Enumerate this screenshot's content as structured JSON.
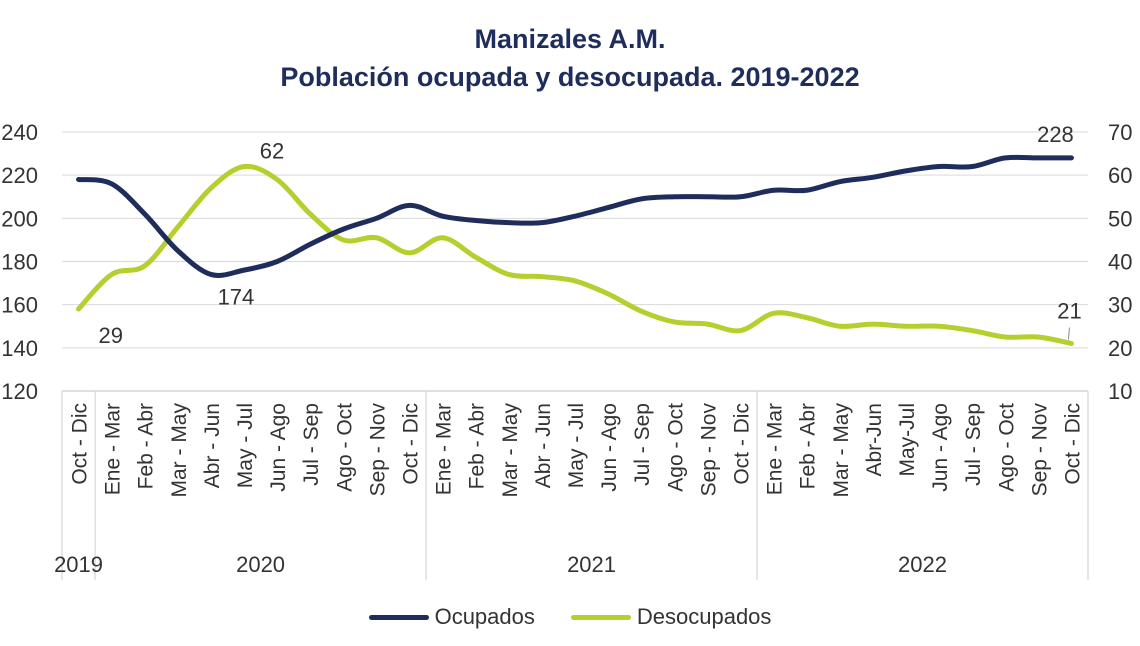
{
  "chart_data": {
    "type": "line",
    "title": "Manizales A.M.",
    "subtitle": "Población ocupada y desocupada. 2019-2022",
    "categories": [
      "Oct - Dic",
      "Ene - Mar",
      "Feb - Abr",
      "Mar - May",
      "Abr - Jun",
      "May - Jul",
      "Jun - Ago",
      "Jul - Sep",
      "Ago - Oct",
      "Sep - Nov",
      "Oct - Dic",
      "Ene - Mar",
      "Feb - Abr",
      "Mar - May",
      "Abr - Jun",
      "May - Jul",
      "Jun - Ago",
      "Jul - Sep",
      "Ago - Oct",
      "Sep - Nov",
      "Oct - Dic",
      "Ene - Mar",
      "Feb - Abr",
      "Mar - May",
      "Abr-Jun",
      "May-Jul",
      "Jun - Ago",
      "Jul - Sep",
      "Ago - Oct",
      "Sep - Nov",
      "Oct - Dic"
    ],
    "year_groups": [
      {
        "label": "2019",
        "start": 0,
        "end": 0
      },
      {
        "label": "2020",
        "start": 1,
        "end": 10
      },
      {
        "label": "2021",
        "start": 11,
        "end": 20
      },
      {
        "label": "2022",
        "start": 21,
        "end": 30
      }
    ],
    "y_left": {
      "ticks": [
        120,
        140,
        160,
        180,
        200,
        220,
        240
      ],
      "tick_labels": [
        "120",
        "140",
        "160",
        "180",
        "200",
        "220",
        "240"
      ],
      "range": [
        120,
        240
      ]
    },
    "y_right": {
      "ticks": [
        10,
        20,
        30,
        40,
        50,
        60,
        70
      ],
      "tick_labels": [
        "10",
        "20",
        "30",
        "40",
        "50",
        "60",
        "70"
      ],
      "range": [
        10,
        70
      ]
    },
    "grid": true,
    "series": [
      {
        "name": "Ocupados",
        "axis": "left",
        "color": "#1f2d5c",
        "values": [
          218,
          216,
          202,
          185,
          174,
          176,
          180,
          188,
          195,
          200,
          206,
          201,
          199,
          198,
          198,
          201,
          205,
          209,
          210,
          210,
          210,
          213,
          213,
          217,
          219,
          222,
          224,
          224,
          228,
          228,
          228
        ]
      },
      {
        "name": "Desocupados",
        "axis": "right",
        "color": "#b5cf2e",
        "values": [
          29,
          37,
          39,
          48,
          57,
          62,
          59,
          51,
          45,
          45.5,
          42,
          45.5,
          41,
          37,
          36.5,
          35.5,
          32.5,
          28.5,
          26,
          25.5,
          24,
          28,
          27,
          25,
          25.5,
          25,
          25,
          24,
          22.5,
          22.5,
          21
        ]
      }
    ],
    "annotations": [
      {
        "series": 1,
        "index": 0,
        "label": "29"
      },
      {
        "series": 0,
        "index": 4,
        "label": "174"
      },
      {
        "series": 1,
        "index": 5,
        "label": "62"
      },
      {
        "series": 0,
        "index": 30,
        "label": "228"
      },
      {
        "series": 1,
        "index": 30,
        "label": "21"
      }
    ],
    "legend": {
      "position": "bottom",
      "entries": [
        "Ocupados",
        "Desocupados"
      ]
    }
  }
}
